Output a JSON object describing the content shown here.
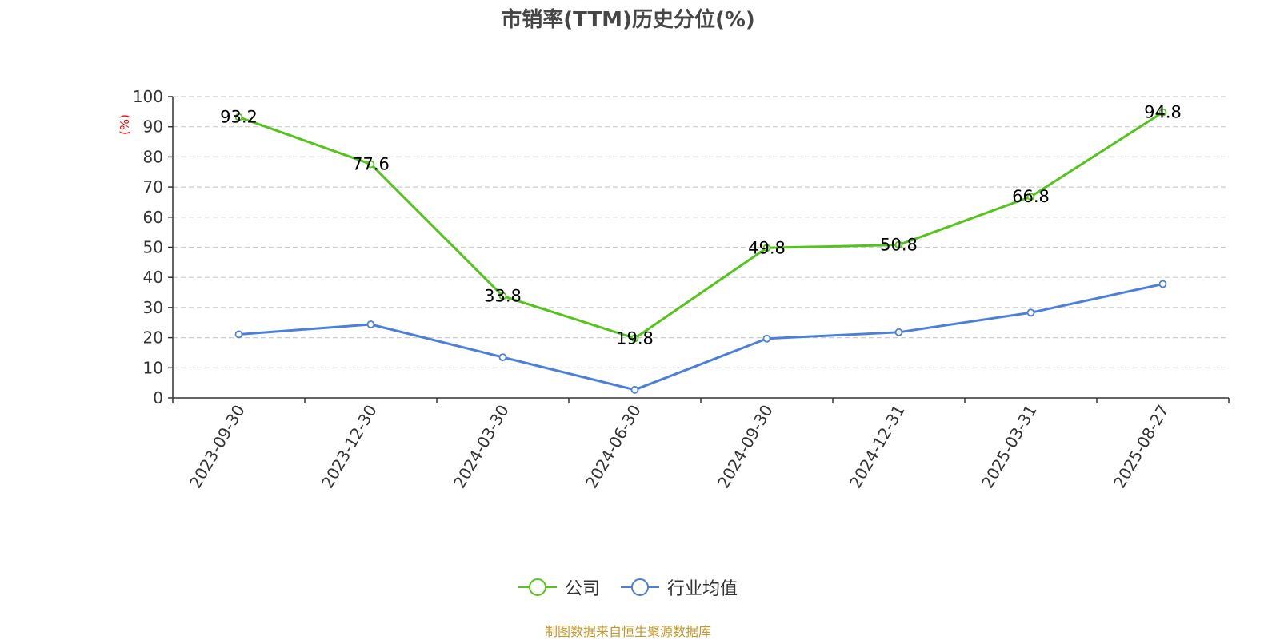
{
  "title": "市销率(TTM)历史分位(%)",
  "source_note": "制图数据来自恒生聚源数据库",
  "chart_data": {
    "type": "line",
    "title": "市销率(TTM)历史分位(%)",
    "ylabel": "(%)",
    "ylabel_color": "#ff0000",
    "ylim": [
      0,
      100
    ],
    "yticks": [
      0,
      10,
      20,
      30,
      40,
      50,
      60,
      70,
      80,
      90,
      100
    ],
    "grid": "horizontal dashed",
    "legend_position": "bottom",
    "categories": [
      "2023-09-30",
      "2023-12-30",
      "2024-03-30",
      "2024-06-30",
      "2024-09-30",
      "2024-12-31",
      "2025-03-31",
      "2025-08-27"
    ],
    "series": [
      {
        "name": "公司",
        "color": "#52c41a",
        "values": [
          93.2,
          77.6,
          33.8,
          19.8,
          49.8,
          50.8,
          66.8,
          94.8
        ],
        "show_labels": true
      },
      {
        "name": "行业均值",
        "color": "#4a7fdc",
        "values": [
          21.1,
          24.4,
          13.5,
          2.7,
          19.7,
          21.8,
          28.3,
          37.8
        ],
        "show_labels": false
      }
    ]
  }
}
